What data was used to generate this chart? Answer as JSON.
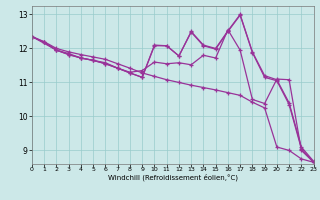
{
  "xlabel": "Windchill (Refroidissement éolien,°C)",
  "bg_color": "#cce8e8",
  "grid_color": "#99cccc",
  "line_color": "#993399",
  "xlim": [
    0,
    23
  ],
  "ylim": [
    8.6,
    13.25
  ],
  "yticks": [
    9,
    10,
    11,
    12,
    13
  ],
  "xticks": [
    0,
    1,
    2,
    3,
    4,
    5,
    6,
    7,
    8,
    9,
    10,
    11,
    12,
    13,
    14,
    15,
    16,
    17,
    18,
    19,
    20,
    21,
    22,
    23
  ],
  "lines": [
    {
      "x": [
        0,
        1,
        2,
        3,
        4,
        5,
        6,
        7,
        8,
        9,
        10,
        11,
        12,
        13,
        14,
        15,
        16,
        17,
        18,
        19,
        20,
        21,
        22,
        23
      ],
      "y": [
        12.35,
        12.2,
        12.0,
        11.9,
        11.82,
        11.75,
        11.68,
        11.55,
        11.42,
        11.28,
        11.18,
        11.08,
        11.0,
        10.92,
        10.85,
        10.78,
        10.7,
        10.62,
        10.42,
        10.25,
        9.1,
        9.0,
        8.75,
        8.65
      ]
    },
    {
      "x": [
        0,
        1,
        2,
        3,
        4,
        5,
        6,
        7,
        8,
        9,
        10,
        11,
        12,
        13,
        14,
        15,
        16,
        17,
        18,
        19,
        20,
        21,
        22,
        23
      ],
      "y": [
        12.35,
        12.18,
        11.95,
        11.82,
        11.72,
        11.65,
        11.58,
        11.42,
        11.3,
        11.35,
        11.6,
        11.55,
        11.58,
        11.52,
        11.8,
        11.72,
        12.55,
        11.95,
        10.5,
        10.38,
        11.1,
        11.08,
        9.0,
        8.65
      ]
    },
    {
      "x": [
        0,
        1,
        2,
        3,
        4,
        5,
        6,
        7,
        8,
        9,
        10,
        11,
        12,
        13,
        14,
        15,
        16,
        17,
        18,
        19,
        20,
        21,
        22,
        23
      ],
      "y": [
        12.35,
        12.18,
        11.95,
        11.85,
        11.72,
        11.65,
        11.55,
        11.42,
        11.28,
        11.15,
        12.1,
        12.08,
        11.78,
        12.5,
        12.1,
        12.0,
        12.52,
        13.0,
        11.9,
        11.2,
        11.08,
        10.4,
        9.1,
        8.68
      ]
    },
    {
      "x": [
        0,
        2,
        3,
        4,
        5,
        6,
        7,
        8,
        9,
        10,
        11,
        12,
        13,
        14,
        15,
        16,
        17,
        18,
        19,
        20,
        21,
        22,
        23
      ],
      "y": [
        12.35,
        11.95,
        11.82,
        11.72,
        11.65,
        11.55,
        11.42,
        11.28,
        11.15,
        12.08,
        12.08,
        11.78,
        12.48,
        12.08,
        11.98,
        12.5,
        12.98,
        11.88,
        11.15,
        11.05,
        10.35,
        9.05,
        8.65
      ]
    }
  ]
}
